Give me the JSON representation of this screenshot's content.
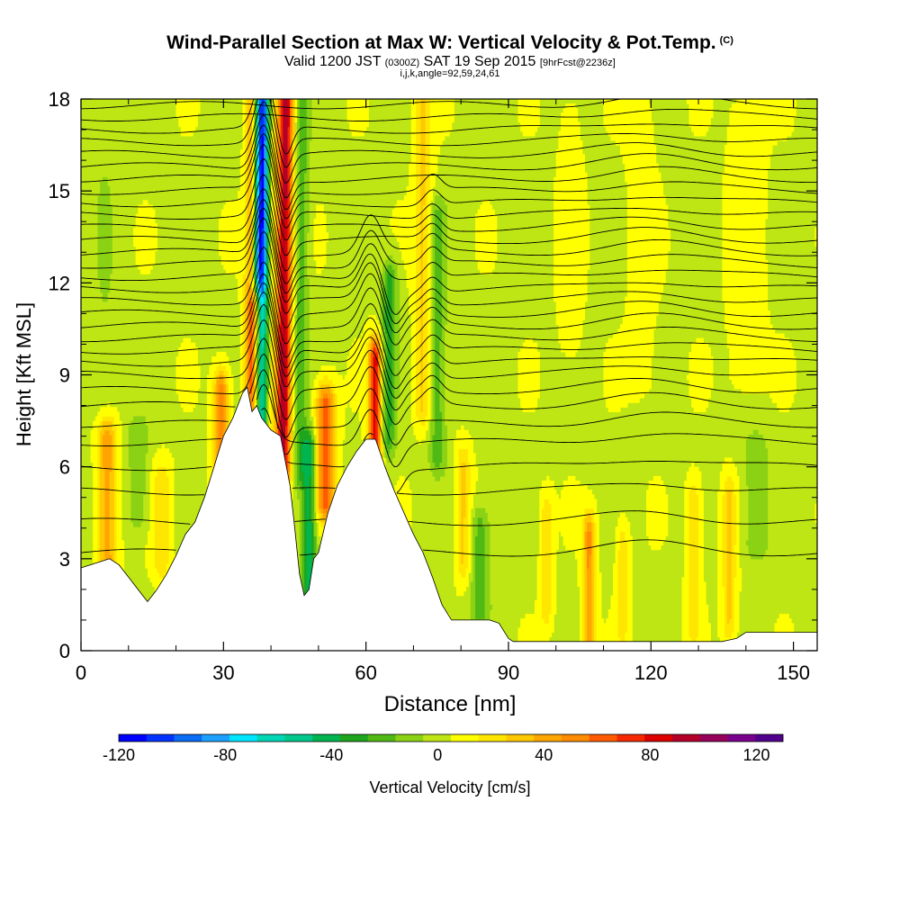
{
  "header": {
    "title": "Wind-Parallel Section at Max W: Vertical Velocity & Pot.Temp.",
    "copyright": "(C)",
    "valid_prefix": "Valid 1200 JST",
    "valid_utc": "(0300Z)",
    "valid_date": "SAT 19 Sep 2015",
    "forecast": "[9hrFcst@2236z]",
    "grid_info": "i,j,k,angle=92,59,24,61"
  },
  "colors": {
    "palette": [
      "#0000ff",
      "#0033ff",
      "#0a6cf5",
      "#1ea0ff",
      "#00e5ff",
      "#00d6b4",
      "#00c88c",
      "#00b450",
      "#1ea51e",
      "#50b914",
      "#8cd214",
      "#bee614",
      "#ffff00",
      "#ffe600",
      "#ffc800",
      "#ffa500",
      "#ff8c00",
      "#ff5a00",
      "#f52800",
      "#dc0000",
      "#b40028",
      "#96005a",
      "#78008c",
      "#50008c"
    ],
    "terrain": "#ffffff",
    "background_field": "#bee614",
    "contour": "#000000"
  },
  "chart_data": {
    "type": "heatmap",
    "title": "Wind-Parallel Section at Max W: Vertical Velocity & Pot.Temp.",
    "xlabel": "Distance [nm]",
    "ylabel": "Height [Kft MSL]",
    "xlim": [
      0,
      155
    ],
    "ylim": [
      0,
      18
    ],
    "xticks": [
      0,
      30,
      60,
      90,
      120,
      150
    ],
    "yticks": [
      0,
      3,
      6,
      9,
      12,
      15,
      18
    ],
    "colorbar": {
      "label": "Vertical Velocity [cm/s]",
      "range": [
        -120,
        130
      ],
      "ticks": [
        -120,
        -80,
        -40,
        0,
        40,
        80,
        120
      ]
    },
    "terrain_profile": {
      "distance_nm": [
        0,
        6,
        8,
        10,
        12,
        14,
        16,
        18,
        20,
        22,
        24,
        26,
        28,
        30,
        32,
        34,
        35,
        36,
        37,
        38,
        40,
        42,
        44,
        45,
        46,
        47,
        48,
        49,
        50,
        52,
        54,
        56,
        58,
        60,
        62,
        64,
        66,
        68,
        70,
        72,
        74,
        76,
        78,
        80,
        82,
        84,
        86,
        88,
        90,
        91,
        92,
        94,
        100,
        110,
        120,
        130,
        135,
        138,
        140,
        150,
        155
      ],
      "height_kft": [
        2.7,
        3.0,
        2.8,
        2.4,
        2.0,
        1.6,
        2.0,
        2.5,
        3.1,
        3.8,
        4.2,
        5.0,
        6.0,
        7.0,
        7.6,
        8.4,
        8.6,
        7.8,
        8.0,
        7.6,
        7.2,
        7.0,
        5.4,
        4.0,
        2.5,
        1.8,
        2.0,
        3.0,
        3.2,
        4.5,
        5.4,
        6.0,
        6.5,
        6.9,
        6.9,
        6.0,
        5.2,
        4.5,
        3.8,
        3.2,
        2.4,
        1.5,
        1.0,
        1.0,
        1.0,
        1.0,
        1.0,
        0.9,
        0.4,
        0.3,
        0.3,
        0.3,
        0.3,
        0.3,
        0.3,
        0.3,
        0.3,
        0.4,
        0.6,
        0.6,
        0.6
      ]
    },
    "vertical_velocity_features": [
      {
        "center_nm": 37.5,
        "lean_nm_per_kft": 0.05,
        "width_nm": 1.5,
        "peak_cm_s": -120,
        "base_kft": 6.0,
        "top_kft": 18
      },
      {
        "center_nm": 42.5,
        "lean_nm_per_kft": 0.05,
        "width_nm": 1.6,
        "peak_cm_s": 90,
        "base_kft": 6.0,
        "top_kft": 18
      },
      {
        "center_nm": 40.0,
        "lean_nm_per_kft": 0.05,
        "width_nm": 1.2,
        "peak_cm_s": 10,
        "base_kft": 6.0,
        "top_kft": 18
      },
      {
        "center_nm": 46.0,
        "lean_nm_per_kft": 0.05,
        "width_nm": 1.5,
        "peak_cm_s": -25,
        "base_kft": 6.0,
        "top_kft": 18
      },
      {
        "center_nm": 35.5,
        "lean_nm_per_kft": 0.05,
        "width_nm": 1.4,
        "peak_cm_s": 40,
        "base_kft": 6.0,
        "top_kft": 18
      },
      {
        "center_nm": 37.0,
        "lean_nm_per_kft": 0,
        "width_nm": 1.5,
        "peak_cm_s": 80,
        "base_kft": 7.5,
        "top_kft": 11
      },
      {
        "center_nm": 62.0,
        "lean_nm_per_kft": 0,
        "width_nm": 1.4,
        "peak_cm_s": 80,
        "base_kft": 5.5,
        "top_kft": 9.5
      },
      {
        "center_nm": 64.5,
        "lean_nm_per_kft": 0.1,
        "width_nm": 1.6,
        "peak_cm_s": -35,
        "base_kft": 7.0,
        "top_kft": 12
      },
      {
        "center_nm": 51.5,
        "lean_nm_per_kft": 0,
        "width_nm": 2.0,
        "peak_cm_s": 60,
        "base_kft": 5.0,
        "top_kft": 8.0
      },
      {
        "center_nm": 48.0,
        "lean_nm_per_kft": 0,
        "width_nm": 1.5,
        "peak_cm_s": -45,
        "base_kft": 2.0,
        "top_kft": 6.5
      },
      {
        "center_nm": 29.5,
        "lean_nm_per_kft": 0,
        "width_nm": 1.6,
        "peak_cm_s": 50,
        "base_kft": 5.0,
        "top_kft": 8.5
      },
      {
        "center_nm": 5.5,
        "lean_nm_per_kft": 0,
        "width_nm": 2.0,
        "peak_cm_s": 40,
        "base_kft": 3.0,
        "top_kft": 7.0
      },
      {
        "center_nm": 17.0,
        "lean_nm_per_kft": 0,
        "width_nm": 2.0,
        "peak_cm_s": 20,
        "base_kft": 3.0,
        "top_kft": 5.5
      },
      {
        "center_nm": 12.0,
        "lean_nm_per_kft": 0,
        "width_nm": 2.5,
        "peak_cm_s": -15,
        "base_kft": 4.5,
        "top_kft": 7.0
      },
      {
        "center_nm": 75.0,
        "lean_nm_per_kft": 0,
        "width_nm": 1.8,
        "peak_cm_s": -25,
        "base_kft": 6.5,
        "top_kft": 14
      },
      {
        "center_nm": 72.0,
        "lean_nm_per_kft": 0,
        "width_nm": 1.8,
        "peak_cm_s": 25,
        "base_kft": 8.0,
        "top_kft": 18
      },
      {
        "center_nm": 80.5,
        "lean_nm_per_kft": 0,
        "width_nm": 1.5,
        "peak_cm_s": 25,
        "base_kft": 3.0,
        "top_kft": 6.0
      },
      {
        "center_nm": 84.0,
        "lean_nm_per_kft": 0,
        "width_nm": 2.0,
        "peak_cm_s": -25,
        "base_kft": 1.5,
        "top_kft": 4.0
      },
      {
        "center_nm": 98.0,
        "lean_nm_per_kft": 0,
        "width_nm": 1.3,
        "peak_cm_s": 20,
        "base_kft": 1.5,
        "top_kft": 4.5
      },
      {
        "center_nm": 107.0,
        "lean_nm_per_kft": 0,
        "width_nm": 1.3,
        "peak_cm_s": 45,
        "base_kft": 0.5,
        "top_kft": 3.8
      },
      {
        "center_nm": 114.0,
        "lean_nm_per_kft": 0,
        "width_nm": 1.3,
        "peak_cm_s": 20,
        "base_kft": 1.0,
        "top_kft": 3.5
      },
      {
        "center_nm": 129.0,
        "lean_nm_per_kft": 0,
        "width_nm": 1.5,
        "peak_cm_s": 20,
        "base_kft": 1.0,
        "top_kft": 5.0
      },
      {
        "center_nm": 136.5,
        "lean_nm_per_kft": 0,
        "width_nm": 1.5,
        "peak_cm_s": 25,
        "base_kft": 1.0,
        "top_kft": 5.0
      },
      {
        "center_nm": 142.0,
        "lean_nm_per_kft": 0,
        "width_nm": 3.0,
        "peak_cm_s": -15,
        "base_kft": 3.5,
        "top_kft": 6.5
      },
      {
        "center_nm": 118.0,
        "lean_nm_per_kft": 0,
        "width_nm": 3.0,
        "peak_cm_s": 8,
        "base_kft": 9.0,
        "top_kft": 17.5
      },
      {
        "center_nm": 140.0,
        "lean_nm_per_kft": 0,
        "width_nm": 4.0,
        "peak_cm_s": 8,
        "base_kft": 9.0,
        "top_kft": 17.5
      },
      {
        "center_nm": 103.0,
        "lean_nm_per_kft": 0,
        "width_nm": 3.0,
        "peak_cm_s": 6,
        "base_kft": 10.0,
        "top_kft": 17.5
      },
      {
        "center_nm": 5.0,
        "lean_nm_per_kft": 0,
        "width_nm": 3.0,
        "peak_cm_s": -8,
        "base_kft": 8.0,
        "top_kft": 17.5
      }
    ],
    "potential_temperature_contours_kft": [
      3.2,
      4.2,
      5.2,
      6.0,
      6.8,
      7.4,
      8.0,
      8.5,
      9.0,
      9.4,
      9.8,
      10.2,
      10.6,
      11.0,
      11.4,
      11.8,
      12.2,
      12.6,
      13.0,
      13.4,
      13.8,
      14.2,
      14.6,
      15.0,
      15.4,
      15.8,
      16.2,
      16.6,
      17.0,
      17.4,
      17.8
    ]
  }
}
